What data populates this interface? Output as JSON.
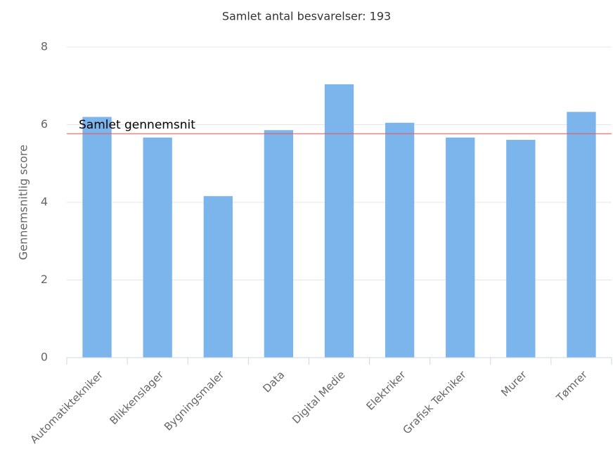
{
  "chart_data": {
    "type": "bar",
    "title": "Samlet antal besvarelser: 193",
    "y_label": "Gennemsnitlig score",
    "categories": [
      "Automatiktekniker",
      "Blikkenslager",
      "Bygningsmaler",
      "Data",
      "Digital Medie",
      "Elektriker",
      "Grafisk Tekniker",
      "Murer",
      "Tømrer"
    ],
    "values": [
      6.2,
      5.67,
      4.16,
      5.86,
      7.04,
      6.05,
      5.67,
      5.61,
      6.33
    ],
    "color": "#7cb5ec",
    "ylim": [
      0,
      8
    ],
    "yticks": [
      0,
      2,
      4,
      6,
      8
    ],
    "grid": true,
    "reference_line": {
      "label": "Samlet gennemsnit",
      "value": 5.77,
      "color": "#ff4d4d"
    }
  }
}
